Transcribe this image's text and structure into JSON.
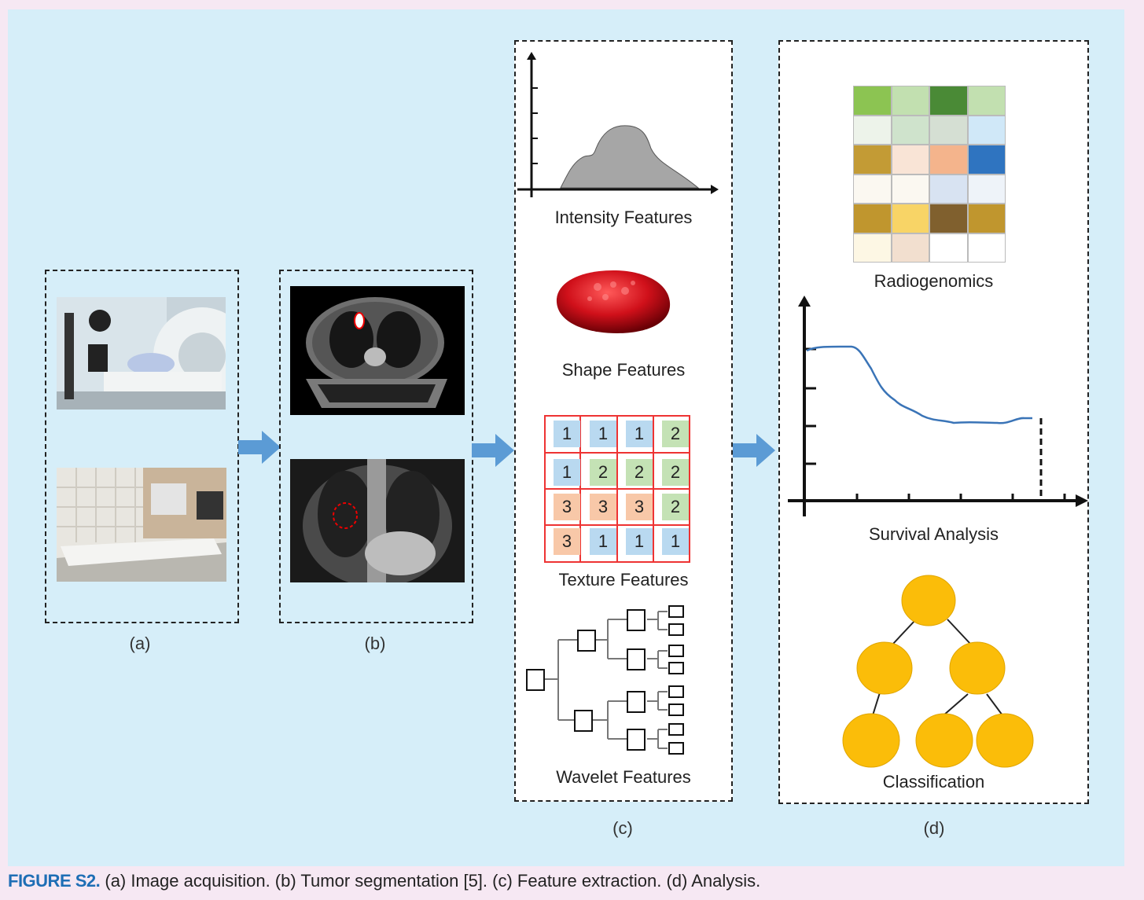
{
  "panels": {
    "a": {
      "label": "(a)"
    },
    "b": {
      "label": "(b)"
    },
    "c": {
      "label": "(c)",
      "intensity": "Intensity Features",
      "shape": "Shape Features",
      "texture": "Texture Features",
      "wavelet": "Wavelet Features",
      "texture_grid": [
        [
          "1",
          "1",
          "1",
          "2"
        ],
        [
          "1",
          "2",
          "2",
          "2"
        ],
        [
          "3",
          "3",
          "3",
          "2"
        ],
        [
          "3",
          "1",
          "1",
          "1"
        ]
      ]
    },
    "d": {
      "label": "(d)",
      "radiogenomics": "Radiogenomics",
      "survival": "Survival Analysis",
      "classification": "Classification",
      "heatmap_colors": [
        [
          "#8cc452",
          "#c2e0b0",
          "#4a8a36",
          "#c2e0b0"
        ],
        [
          "#edf3ea",
          "#cfe3cc",
          "#d5dfd3",
          "#d0e8f8"
        ],
        [
          "#c39b35",
          "#f9e4d6",
          "#f4b48c",
          "#2f74c0"
        ],
        [
          "#fbf8f1",
          "#fbf8f1",
          "#d8e3f2",
          "#eef3f9"
        ],
        [
          "#c0962e",
          "#f8d466",
          "#80602e",
          "#c0962e"
        ],
        [
          "#fdf7e4",
          "#f2dfcf",
          "#ffffff",
          "#ffffff"
        ]
      ]
    }
  },
  "texture_colors": {
    "1": "#b9d9f0",
    "2": "#c4e2b5",
    "3": "#f8c8a8"
  },
  "caption": {
    "figure": "FIGURE S2.",
    "text": " (a) Image acquisition. (b) Tumor segmentation [5]. (c) Feature extraction. (d) Analysis."
  }
}
